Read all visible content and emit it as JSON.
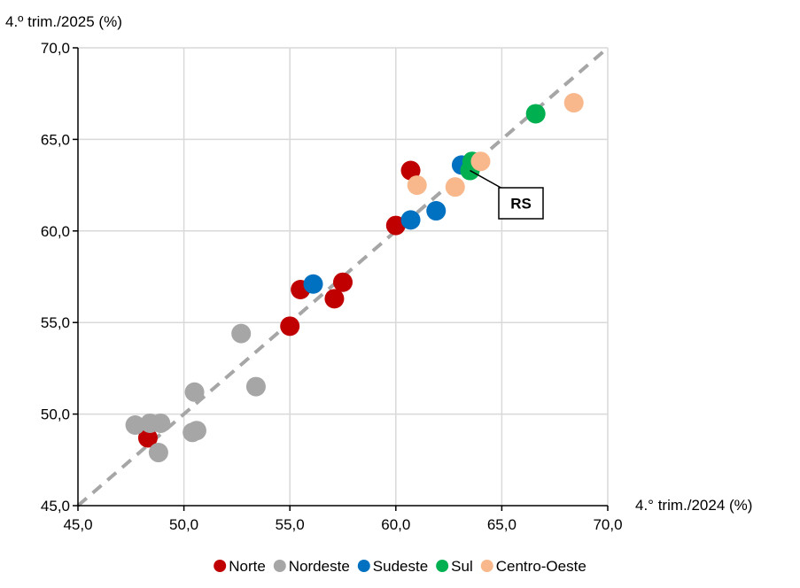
{
  "chart_data": {
    "type": "scatter",
    "ylabel": "4.º trim./2025 (%)",
    "xlabel": "4.° trim./2024 (%)",
    "xlim": [
      45,
      70
    ],
    "ylim": [
      45,
      70
    ],
    "xticks": [
      45,
      50,
      55,
      60,
      65,
      70
    ],
    "yticks": [
      45,
      50,
      55,
      60,
      65,
      70
    ],
    "xtick_labels": [
      "45,0",
      "50,0",
      "55,0",
      "60,0",
      "65,0",
      "70,0"
    ],
    "ytick_labels": [
      "45,0",
      "50,0",
      "55,0",
      "60,0",
      "65,0",
      "70,0"
    ],
    "grid": true,
    "reference_line": "y = x",
    "legend_position": "bottom",
    "series": [
      {
        "name": "Norte",
        "color": "#c00000",
        "x": [
          48.3,
          55.5,
          57.1,
          57.5,
          55.0,
          60.0,
          60.7
        ],
        "y": [
          48.7,
          56.8,
          56.3,
          57.2,
          54.8,
          60.3,
          63.3
        ]
      },
      {
        "name": "Nordeste",
        "color": "#a6a6a6",
        "x": [
          47.7,
          48.4,
          48.9,
          48.8,
          50.4,
          50.6,
          50.5,
          53.4,
          52.7
        ],
        "y": [
          49.4,
          49.5,
          49.5,
          47.9,
          49.0,
          49.1,
          51.2,
          51.5,
          54.4
        ]
      },
      {
        "name": "Sudeste",
        "color": "#0070c0",
        "x": [
          56.1,
          60.7,
          61.9,
          63.1
        ],
        "y": [
          57.1,
          60.6,
          61.1,
          63.6
        ]
      },
      {
        "name": "Sul",
        "color": "#00b050",
        "x": [
          63.6,
          63.5,
          66.6
        ],
        "y": [
          63.8,
          63.3,
          66.4
        ]
      },
      {
        "name": "Centro-Oeste",
        "color": "#f8b88b",
        "x": [
          61.0,
          62.8,
          64.0,
          68.4
        ],
        "y": [
          62.5,
          62.4,
          63.8,
          67.0
        ]
      }
    ],
    "annotations": [
      {
        "text": "RS",
        "x": 63.5,
        "y": 63.3
      }
    ]
  }
}
